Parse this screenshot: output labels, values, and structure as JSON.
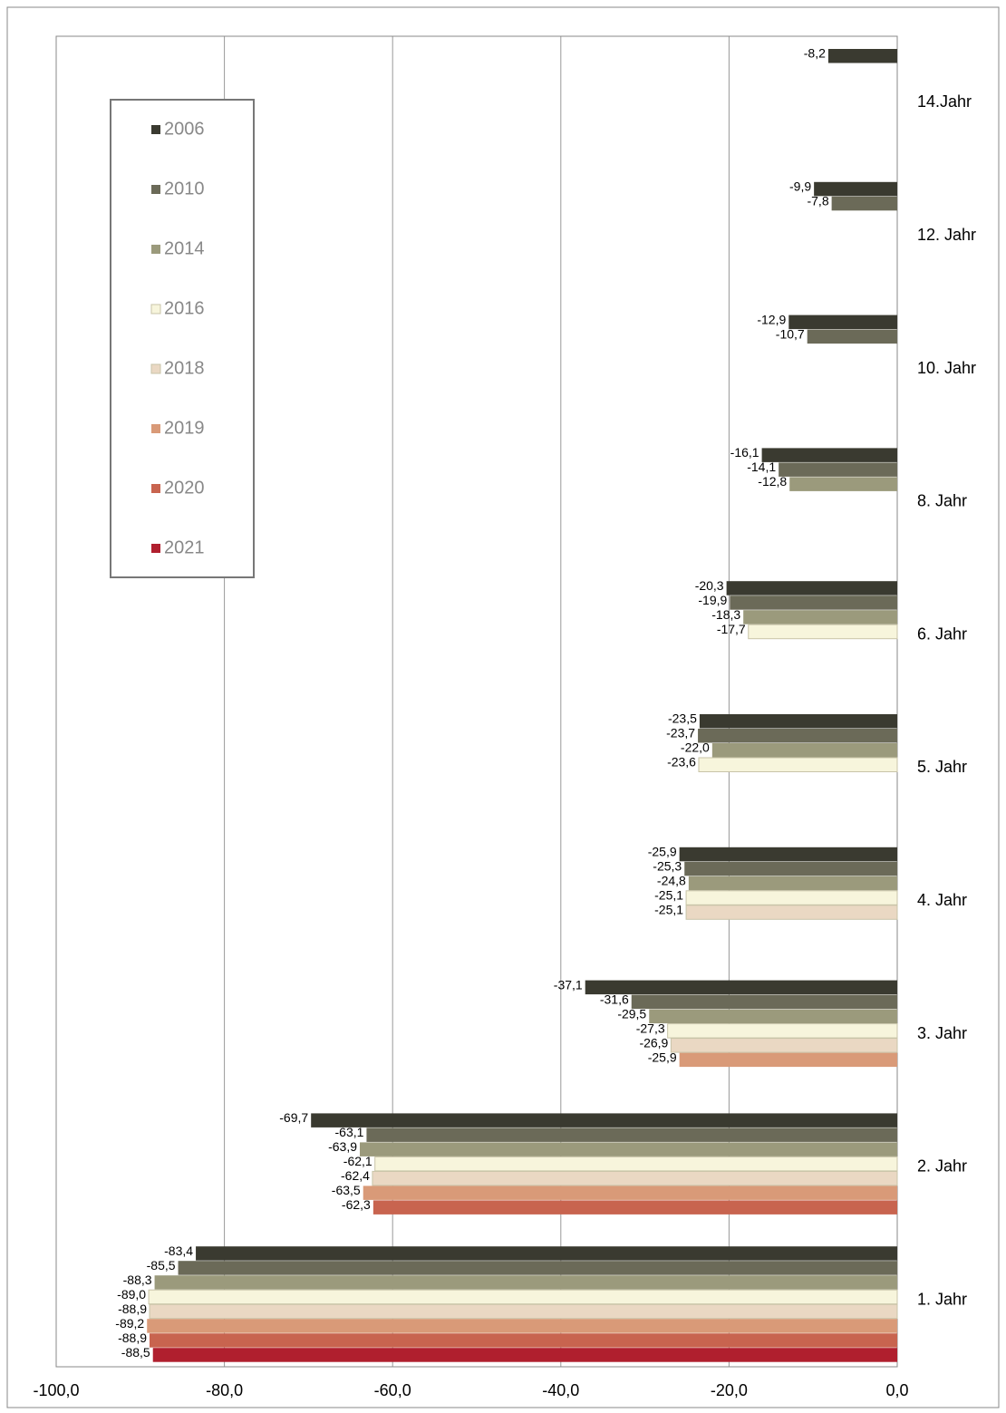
{
  "chart_data": {
    "type": "hbar",
    "categories": [
      "14.Jahr",
      "12. Jahr",
      "10. Jahr",
      "8. Jahr",
      "6. Jahr",
      "5. Jahr",
      "4. Jahr",
      "3. Jahr",
      "2. Jahr",
      "1. Jahr"
    ],
    "series": [
      {
        "name": "2006",
        "color": "#3a3a30",
        "values": [
          -8.2,
          -9.9,
          -12.9,
          -16.1,
          -20.3,
          -23.5,
          -25.9,
          -37.1,
          -69.7,
          -83.4
        ],
        "value_labels": [
          "-8,2",
          "-9,9",
          "-12,9",
          "-16,1",
          "-20,3",
          "-23,5",
          "-25,9",
          "-37,1",
          "-69,7",
          "-83,4"
        ]
      },
      {
        "name": "2010",
        "color": "#6b6a58",
        "values": [
          null,
          -7.8,
          -10.7,
          -14.1,
          -19.9,
          -23.7,
          -25.3,
          -31.6,
          -63.1,
          -85.5
        ],
        "value_labels": [
          null,
          "-7,8",
          "-10,7",
          "-14,1",
          "-19,9",
          "-23,7",
          "-25,3",
          "-31,6",
          "-63,1",
          "-85,5"
        ]
      },
      {
        "name": "2014",
        "color": "#9b9a7c",
        "values": [
          null,
          null,
          null,
          -12.8,
          -18.3,
          -22.0,
          -24.8,
          -29.5,
          -63.9,
          -88.3
        ],
        "value_labels": [
          null,
          null,
          null,
          "-12,8",
          "-18,3",
          "-22,0",
          "-24,8",
          "-29,5",
          "-63,9",
          "-88,3"
        ]
      },
      {
        "name": "2016",
        "color": "#f7f5dc",
        "values": [
          null,
          null,
          null,
          null,
          -17.7,
          -23.6,
          -25.1,
          -27.3,
          -62.1,
          -89.0
        ],
        "value_labels": [
          null,
          null,
          null,
          null,
          "-17,7",
          "-23,6",
          "-25,1",
          "-27,3",
          "-62,1",
          "-89,0"
        ]
      },
      {
        "name": "2018",
        "color": "#ead8c3",
        "values": [
          null,
          null,
          null,
          null,
          null,
          null,
          -25.1,
          -26.9,
          -62.4,
          -88.9
        ],
        "value_labels": [
          null,
          null,
          null,
          null,
          null,
          null,
          "-25,1",
          "-26,9",
          "-62,4",
          "-88,9"
        ]
      },
      {
        "name": "2019",
        "color": "#d99a78",
        "values": [
          null,
          null,
          null,
          null,
          null,
          null,
          null,
          -25.9,
          -63.5,
          -89.2
        ],
        "value_labels": [
          null,
          null,
          null,
          null,
          null,
          null,
          null,
          "-25,9",
          "-63,5",
          "-89,2"
        ]
      },
      {
        "name": "2020",
        "color": "#c8644f",
        "values": [
          null,
          null,
          null,
          null,
          null,
          null,
          null,
          null,
          -62.3,
          -88.9
        ],
        "value_labels": [
          null,
          null,
          null,
          null,
          null,
          null,
          null,
          null,
          "-62,3",
          "-88,9"
        ]
      },
      {
        "name": "2021",
        "color": "#b01f2e",
        "values": [
          null,
          null,
          null,
          null,
          null,
          null,
          null,
          null,
          null,
          -88.5
        ],
        "value_labels": [
          null,
          null,
          null,
          null,
          null,
          null,
          null,
          null,
          null,
          "-88,5"
        ]
      }
    ],
    "xlim": [
      -100,
      0
    ],
    "xticks": [
      {
        "value": -100,
        "label": "-100,0"
      },
      {
        "value": -80,
        "label": "-80,0"
      },
      {
        "value": -60,
        "label": "-60,0"
      },
      {
        "value": -40,
        "label": "-40,0"
      },
      {
        "value": -20,
        "label": "-20,0"
      },
      {
        "value": 0,
        "label": "0,0"
      }
    ],
    "grid": true,
    "legend": "upper left"
  }
}
